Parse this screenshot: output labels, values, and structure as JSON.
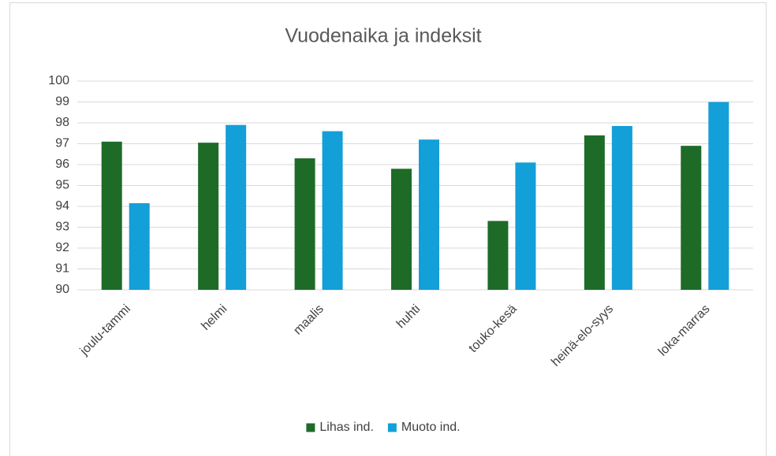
{
  "chart_data": {
    "type": "bar",
    "title": "Vuodenaika ja indeksit",
    "categories": [
      "joulu-tammi",
      "helmi",
      "maalis",
      "huhti",
      "touko-kesä",
      "heinä-elo-syys",
      "loka-marras"
    ],
    "series": [
      {
        "name": "Lihas ind.",
        "color": "#1e6b28",
        "values": [
          97.1,
          97.05,
          96.3,
          95.8,
          93.3,
          97.4,
          96.9
        ]
      },
      {
        "name": "Muoto ind.",
        "color": "#139fd8",
        "values": [
          94.15,
          97.9,
          97.6,
          97.2,
          96.1,
          97.85,
          99.0
        ]
      }
    ],
    "ylim": [
      90,
      100
    ],
    "yticks": [
      90,
      91,
      92,
      93,
      94,
      95,
      96,
      97,
      98,
      99,
      100
    ],
    "grid": true,
    "legend": "bottom"
  }
}
